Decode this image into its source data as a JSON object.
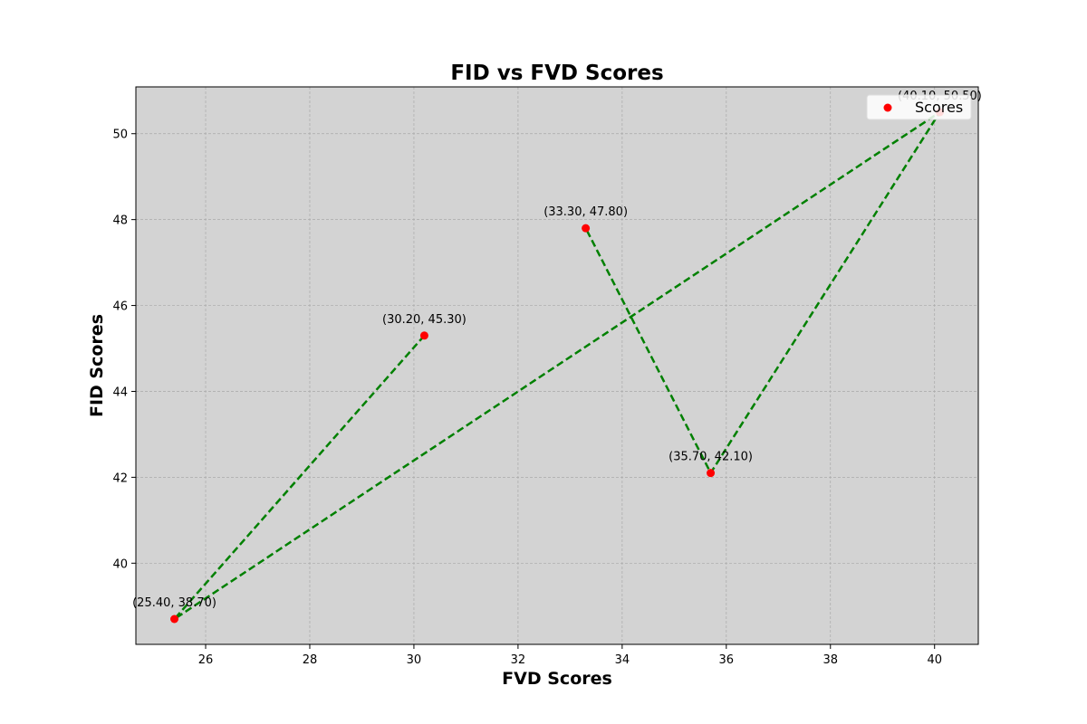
{
  "chart_data": {
    "type": "scatter",
    "title": "FID vs FVD Scores",
    "xlabel": "FVD Scores",
    "ylabel": "FID Scores",
    "xlim": [
      24.66,
      40.84
    ],
    "ylim": [
      38.11,
      51.09
    ],
    "xticks": [
      26,
      28,
      30,
      32,
      34,
      36,
      38,
      40
    ],
    "yticks": [
      40,
      42,
      44,
      46,
      48,
      50
    ],
    "grid": true,
    "legend_position": "top-right",
    "background_color": "#d3d3d3",
    "series": [
      {
        "name": "Scores",
        "marker_color": "#ff0000",
        "line_color": "#008000",
        "line_style": "dashed",
        "points": [
          {
            "x": 30.2,
            "y": 45.3,
            "label": "(30.20, 45.30)"
          },
          {
            "x": 25.4,
            "y": 38.7,
            "label": "(25.40, 38.70)"
          },
          {
            "x": 40.1,
            "y": 50.5,
            "label": "(40.10, 50.50)"
          },
          {
            "x": 35.7,
            "y": 42.1,
            "label": "(35.70, 42.10)"
          },
          {
            "x": 33.3,
            "y": 47.8,
            "label": "(33.30, 47.80)"
          }
        ]
      }
    ]
  }
}
